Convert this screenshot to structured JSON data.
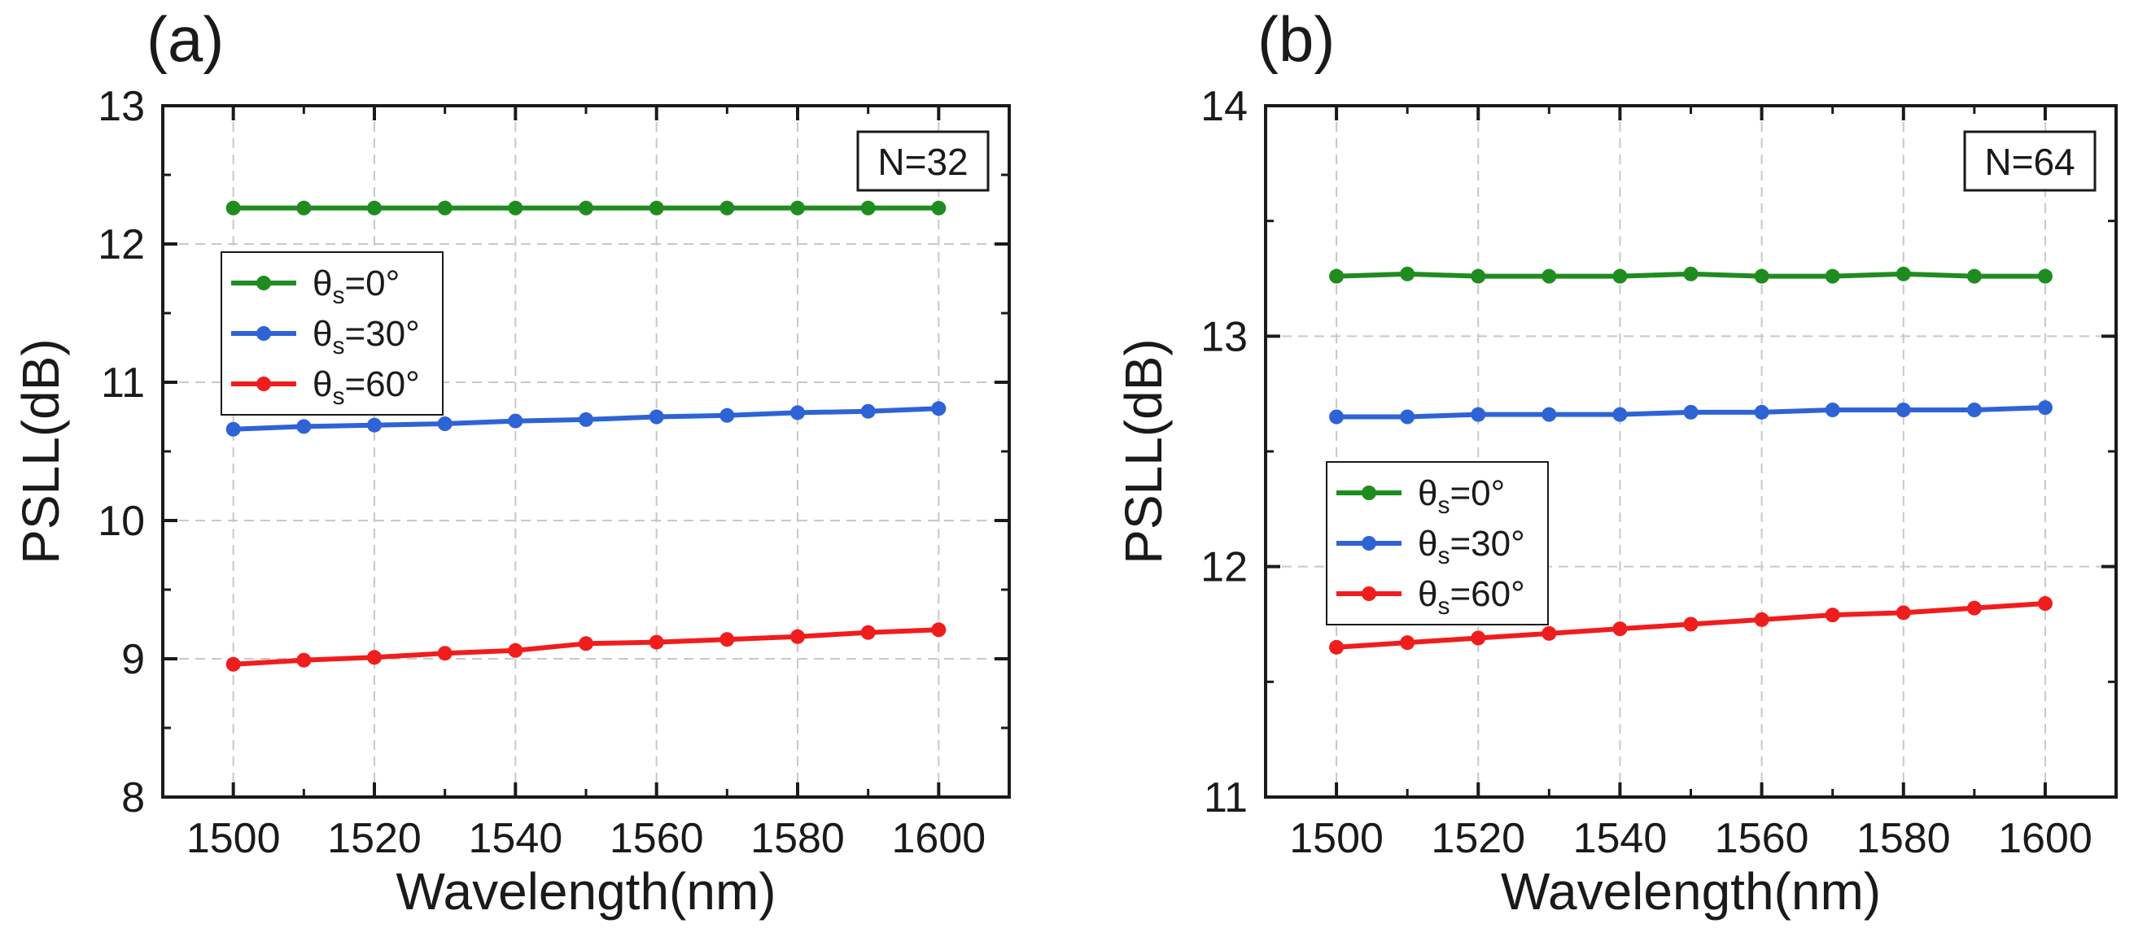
{
  "chart_data": [
    {
      "type": "line",
      "panel_label": "(a)",
      "annotation": "N=32",
      "xlabel": "Wavelength(nm)",
      "ylabel": "PSLL(dB)",
      "xlim": [
        1490,
        1610
      ],
      "ylim": [
        8,
        13
      ],
      "xticks": [
        1500,
        1520,
        1540,
        1560,
        1580,
        1600
      ],
      "yticks": [
        8,
        9,
        10,
        11,
        12,
        13
      ],
      "grid": true,
      "legend_position": "left",
      "x": [
        1500,
        1510,
        1520,
        1530,
        1540,
        1550,
        1560,
        1570,
        1580,
        1590,
        1600
      ],
      "series": [
        {
          "name": "θs=0°",
          "symbol": "θ",
          "sub": "s",
          "rest": "=0°",
          "color": "#1f8c1f",
          "values": [
            12.26,
            12.26,
            12.26,
            12.26,
            12.26,
            12.26,
            12.26,
            12.26,
            12.26,
            12.26,
            12.26
          ]
        },
        {
          "name": "θs=30°",
          "symbol": "θ",
          "sub": "s",
          "rest": "=30°",
          "color": "#2e63d6",
          "values": [
            10.66,
            10.68,
            10.69,
            10.7,
            10.72,
            10.73,
            10.75,
            10.76,
            10.78,
            10.79,
            10.81
          ]
        },
        {
          "name": "θs=60°",
          "symbol": "θ",
          "sub": "s",
          "rest": "=60°",
          "color": "#f01d1d",
          "values": [
            8.96,
            8.99,
            9.01,
            9.04,
            9.06,
            9.11,
            9.12,
            9.14,
            9.16,
            9.19,
            9.21
          ]
        }
      ]
    },
    {
      "type": "line",
      "panel_label": "(b)",
      "annotation": "N=64",
      "xlabel": "Wavelength(nm)",
      "ylabel": "PSLL(dB)",
      "xlim": [
        1490,
        1610
      ],
      "ylim": [
        11,
        14
      ],
      "xticks": [
        1500,
        1520,
        1540,
        1560,
        1580,
        1600
      ],
      "yticks": [
        11,
        12,
        13,
        14
      ],
      "grid": true,
      "legend_position": "left",
      "x": [
        1500,
        1510,
        1520,
        1530,
        1540,
        1550,
        1560,
        1570,
        1580,
        1590,
        1600
      ],
      "series": [
        {
          "name": "θs=0°",
          "symbol": "θ",
          "sub": "s",
          "rest": "=0°",
          "color": "#1f8c1f",
          "values": [
            13.26,
            13.27,
            13.26,
            13.26,
            13.26,
            13.27,
            13.26,
            13.26,
            13.27,
            13.26,
            13.26
          ]
        },
        {
          "name": "θs=30°",
          "symbol": "θ",
          "sub": "s",
          "rest": "=30°",
          "color": "#2e63d6",
          "values": [
            12.65,
            12.65,
            12.66,
            12.66,
            12.66,
            12.67,
            12.67,
            12.68,
            12.68,
            12.68,
            12.69
          ]
        },
        {
          "name": "θs=60°",
          "symbol": "θ",
          "sub": "s",
          "rest": "=60°",
          "color": "#f01d1d",
          "values": [
            11.65,
            11.67,
            11.69,
            11.71,
            11.73,
            11.75,
            11.77,
            11.79,
            11.8,
            11.82,
            11.84
          ]
        }
      ]
    }
  ]
}
